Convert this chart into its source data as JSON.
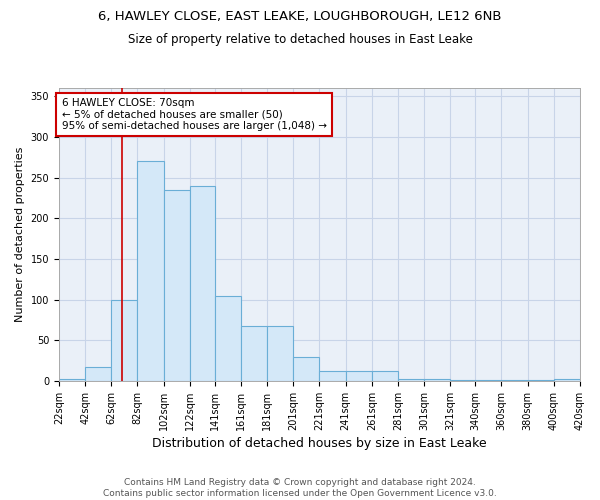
{
  "title1": "6, HAWLEY CLOSE, EAST LEAKE, LOUGHBOROUGH, LE12 6NB",
  "title2": "Size of property relative to detached houses in East Leake",
  "xlabel": "Distribution of detached houses by size in East Leake",
  "ylabel": "Number of detached properties",
  "bar_left_edges": [
    22,
    42,
    62,
    82,
    102,
    122,
    141,
    161,
    181,
    201,
    221,
    241,
    261,
    281,
    301,
    321,
    340,
    360,
    380,
    400
  ],
  "bar_widths": [
    20,
    20,
    20,
    20,
    20,
    19,
    20,
    20,
    20,
    20,
    20,
    20,
    20,
    20,
    20,
    19,
    20,
    20,
    20,
    20
  ],
  "bar_heights": [
    3,
    17,
    100,
    270,
    235,
    240,
    105,
    67,
    67,
    29,
    12,
    12,
    12,
    2,
    2,
    1,
    1,
    1,
    1,
    2
  ],
  "bar_facecolor": "#d4e8f8",
  "bar_edgecolor": "#6aaed6",
  "grid_color": "#c8d4e8",
  "background_color": "#eaf0f8",
  "vline_x": 70,
  "vline_color": "#cc0000",
  "annotation_text": "6 HAWLEY CLOSE: 70sqm\n← 5% of detached houses are smaller (50)\n95% of semi-detached houses are larger (1,048) →",
  "annotation_box_color": "#cc0000",
  "ylim": [
    0,
    360
  ],
  "xlim": [
    22,
    420
  ],
  "xtick_labels": [
    "22sqm",
    "42sqm",
    "62sqm",
    "82sqm",
    "102sqm",
    "122sqm",
    "141sqm",
    "161sqm",
    "181sqm",
    "201sqm",
    "221sqm",
    "241sqm",
    "261sqm",
    "281sqm",
    "301sqm",
    "321sqm",
    "340sqm",
    "360sqm",
    "380sqm",
    "400sqm",
    "420sqm"
  ],
  "xtick_positions": [
    22,
    42,
    62,
    82,
    102,
    122,
    141,
    161,
    181,
    201,
    221,
    241,
    261,
    281,
    301,
    321,
    340,
    360,
    380,
    400,
    420
  ],
  "ytick_positions": [
    0,
    50,
    100,
    150,
    200,
    250,
    300,
    350
  ],
  "footer": "Contains HM Land Registry data © Crown copyright and database right 2024.\nContains public sector information licensed under the Open Government Licence v3.0.",
  "title1_fontsize": 9.5,
  "title2_fontsize": 8.5,
  "xlabel_fontsize": 9,
  "ylabel_fontsize": 8,
  "tick_fontsize": 7,
  "footer_fontsize": 6.5,
  "ann_fontsize": 7.5
}
